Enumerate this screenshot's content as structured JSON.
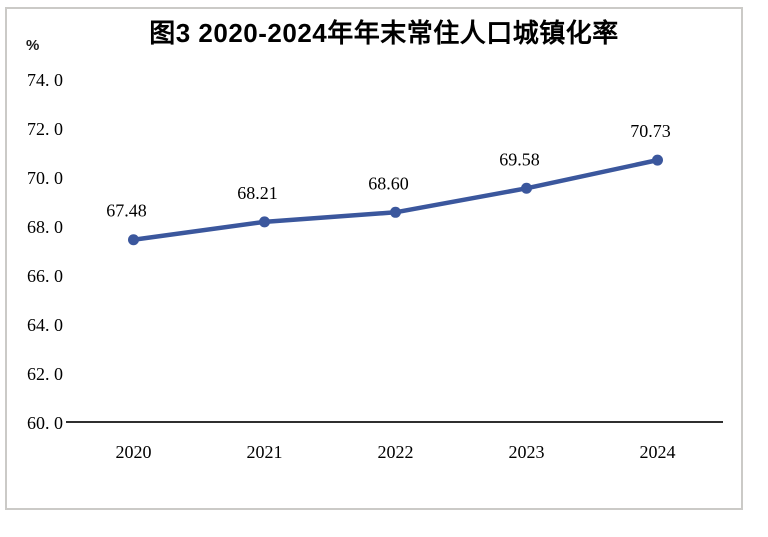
{
  "chart_data": {
    "type": "line",
    "title": "图3 2020-2024年年末常住人口城镇化率",
    "unit": "%",
    "categories": [
      "2020",
      "2021",
      "2022",
      "2023",
      "2024"
    ],
    "values": [
      67.48,
      68.21,
      68.6,
      69.58,
      70.73
    ],
    "data_labels": [
      "67.48",
      "68.21",
      "68.60",
      "69.58",
      "70.73"
    ],
    "xlabel": "",
    "ylabel": "%",
    "ylim": [
      60.0,
      74.0
    ],
    "y_tick_step": 2.0,
    "y_ticks": [
      {
        "value": 74.0,
        "label": "74. 0"
      },
      {
        "value": 72.0,
        "label": "72. 0"
      },
      {
        "value": 70.0,
        "label": "70. 0"
      },
      {
        "value": 68.0,
        "label": "68. 0"
      },
      {
        "value": 66.0,
        "label": "66. 0"
      },
      {
        "value": 64.0,
        "label": "64. 0"
      },
      {
        "value": 62.0,
        "label": "62. 0"
      },
      {
        "value": 60.0,
        "label": "60. 0"
      }
    ],
    "grid": false,
    "legend": false,
    "marker": "circle",
    "line_color": "#3B579D",
    "axis_color": "#2f2f2f",
    "text_color": "#000000",
    "frame_border_color": "#cbcac7"
  }
}
